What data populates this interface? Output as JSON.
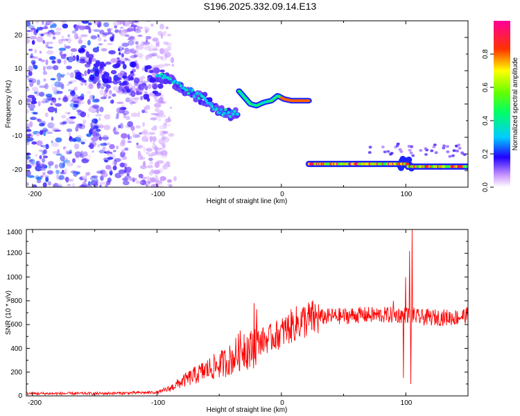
{
  "title": "S196.2025.332.09.14.E13",
  "chart_data": [
    {
      "type": "heatmap",
      "xlabel": "Height of straight line (km)",
      "ylabel": "Frequency (Hz)",
      "xlim": [
        -205,
        150
      ],
      "ylim": [
        -25,
        25
      ],
      "x_ticks": [
        "-200",
        "-100",
        "0",
        "100"
      ],
      "y_ticks": [
        "20",
        "10",
        "0",
        "-10",
        "-20"
      ],
      "colorbar": {
        "label": "Normalized spectral amplitude",
        "range": [
          0,
          1
        ],
        "ticks": [
          "0.0",
          "0.2",
          "0.4",
          "0.6",
          "0.8"
        ],
        "colors": [
          "#ffffff",
          "#9933ff",
          "#2200ff",
          "#00ffff",
          "#00ff00",
          "#ffff00",
          "#ff0000",
          "#ff0099"
        ]
      },
      "features": {
        "diffuse_noise": {
          "x_range": [
            -205,
            -95
          ],
          "y_range": [
            -25,
            25
          ],
          "amplitude": 0.2
        },
        "descending_track": {
          "x": [
            -100,
            -90,
            -80,
            -70,
            -60,
            -50,
            -40,
            -35
          ],
          "y": [
            9,
            7,
            5,
            3,
            1,
            -2,
            -3,
            -3
          ],
          "amplitude": 0.3
        },
        "plateau_track": {
          "x": [
            -30,
            22
          ],
          "y": 1,
          "amplitude": 0.8
        },
        "low_band": {
          "x": [
            22,
            150
          ],
          "y": -18,
          "amplitude": 0.9
        }
      },
      "grid": false
    },
    {
      "type": "line",
      "xlabel": "Height of straight line (km)",
      "ylabel": "SNR (10 * v/v)",
      "xlim": [
        -205,
        150
      ],
      "ylim": [
        0,
        1400
      ],
      "x_ticks": [
        "-200",
        "-100",
        "0",
        "100"
      ],
      "y_ticks": [
        "0",
        "200",
        "400",
        "600",
        "800",
        "1000",
        "1200",
        "1400"
      ],
      "color": "#ff0000",
      "series": [
        {
          "x": [
            -205,
            -180,
            -150,
            -120,
            -100,
            -90,
            -80,
            -70,
            -60,
            -50,
            -40,
            -35,
            -30,
            -25,
            -20,
            -10,
            0,
            10,
            20,
            30,
            40,
            50,
            60,
            70,
            80,
            90,
            95,
            100,
            105,
            110,
            120,
            130,
            140,
            150
          ],
          "values": [
            20,
            20,
            20,
            25,
            30,
            60,
            120,
            170,
            220,
            260,
            310,
            360,
            420,
            380,
            450,
            480,
            530,
            600,
            640,
            660,
            670,
            670,
            680,
            680,
            680,
            680,
            680,
            680,
            680,
            660,
            660,
            660,
            660,
            680
          ]
        }
      ],
      "spikes": [
        {
          "x": -22,
          "y": 780
        },
        {
          "x": -20,
          "y": 730
        },
        {
          "x": 90,
          "y": 800
        },
        {
          "x": 98,
          "y": 150
        },
        {
          "x": 100,
          "y": 1000
        },
        {
          "x": 103,
          "y": 1220
        },
        {
          "x": 104,
          "y": 100
        },
        {
          "x": 105,
          "y": 1400
        }
      ],
      "grid": false
    }
  ]
}
